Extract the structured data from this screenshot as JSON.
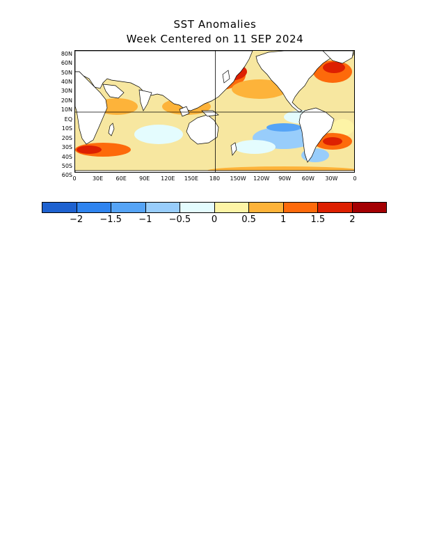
{
  "title_line1": "SST Anomalies",
  "title_line2": "Week Centered on 11 SEP 2024",
  "lat_labels": [
    "80N",
    "60N",
    "50N",
    "40N",
    "30N",
    "20N",
    "10N",
    "EQ",
    "10S",
    "20S",
    "30S",
    "40S",
    "50S",
    "60S"
  ],
  "lon_labels": [
    "0",
    "30E",
    "60E",
    "90E",
    "120E",
    "150E",
    "180",
    "150W",
    "120W",
    "90W",
    "60W",
    "30W",
    "0"
  ],
  "colorbar": {
    "colors": [
      "#1e62d0",
      "#2f84ef",
      "#56a4f6",
      "#98cdfb",
      "#e4fcfe",
      "#fdf4a6",
      "#fdb33a",
      "#fd6a0b",
      "#dd2001",
      "#a40003"
    ],
    "labels": [
      "−2",
      "−1.5",
      "−1",
      "−0.5",
      "0",
      "0.5",
      "1",
      "1.5",
      "2"
    ]
  },
  "map": {
    "ocean_base": "#f7e7a0",
    "land": "#ffffff",
    "grid_line": "#000000"
  }
}
